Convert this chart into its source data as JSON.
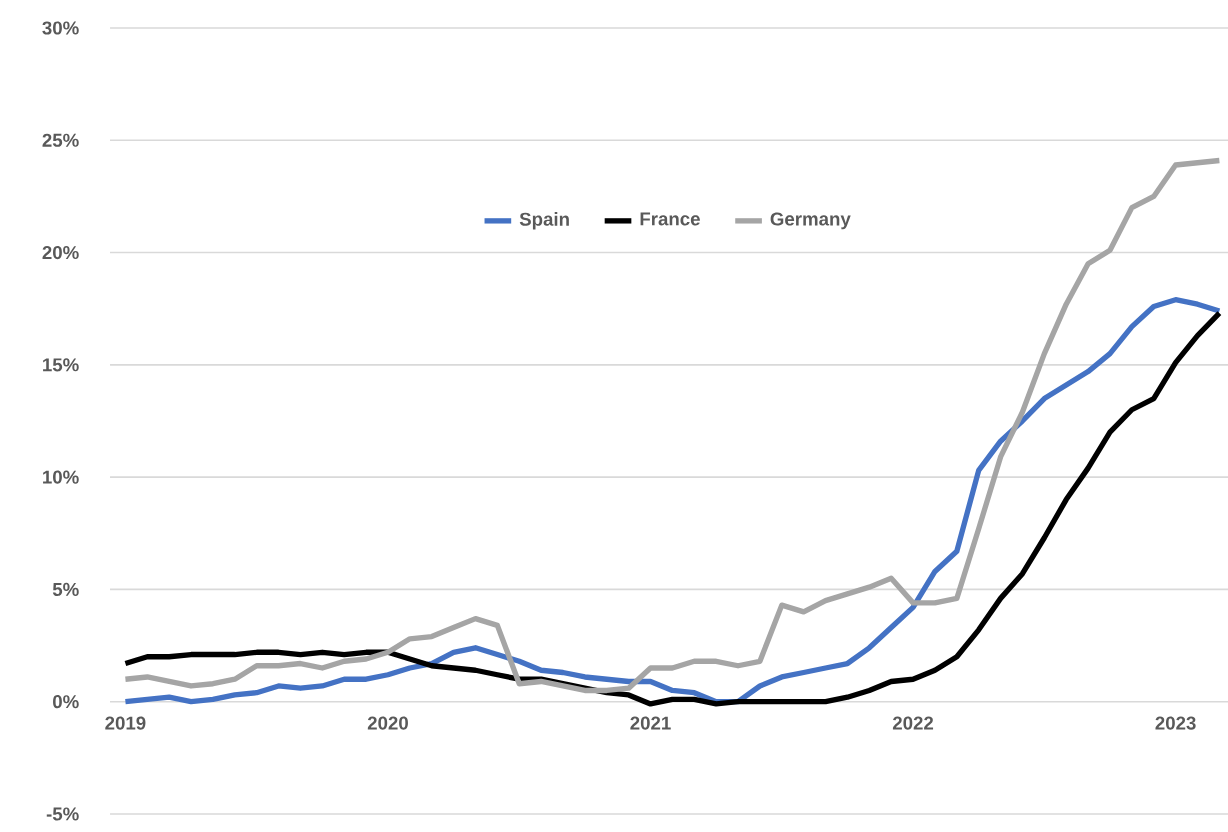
{
  "chart_data": {
    "type": "line",
    "x": [
      "2019-01",
      "2019-02",
      "2019-03",
      "2019-04",
      "2019-05",
      "2019-06",
      "2019-07",
      "2019-08",
      "2019-09",
      "2019-10",
      "2019-11",
      "2019-12",
      "2020-01",
      "2020-02",
      "2020-03",
      "2020-04",
      "2020-05",
      "2020-06",
      "2020-07",
      "2020-08",
      "2020-09",
      "2020-10",
      "2020-11",
      "2020-12",
      "2021-01",
      "2021-02",
      "2021-03",
      "2021-04",
      "2021-05",
      "2021-06",
      "2021-07",
      "2021-08",
      "2021-09",
      "2021-10",
      "2021-11",
      "2021-12",
      "2022-01",
      "2022-02",
      "2022-03",
      "2022-04",
      "2022-05",
      "2022-06",
      "2022-07",
      "2022-08",
      "2022-09",
      "2022-10",
      "2022-11",
      "2022-12",
      "2023-01",
      "2023-02",
      "2023-03"
    ],
    "series": [
      {
        "name": "Spain",
        "color": "#4472c4",
        "values": [
          0.0,
          0.1,
          0.2,
          0.0,
          0.1,
          0.3,
          0.4,
          0.7,
          0.6,
          0.7,
          1.0,
          1.0,
          1.2,
          1.5,
          1.7,
          2.2,
          2.4,
          2.1,
          1.8,
          1.4,
          1.3,
          1.1,
          1.0,
          0.9,
          0.9,
          0.5,
          0.4,
          0.0,
          0.0,
          0.7,
          1.1,
          1.3,
          1.5,
          1.7,
          2.4,
          3.3,
          4.2,
          5.8,
          6.7,
          10.3,
          11.6,
          12.5,
          13.5,
          14.1,
          14.7,
          15.5,
          16.7,
          17.6,
          17.9,
          17.7,
          17.4
        ]
      },
      {
        "name": "France",
        "color": "#000000",
        "values": [
          1.7,
          2.0,
          2.0,
          2.1,
          2.1,
          2.1,
          2.2,
          2.2,
          2.1,
          2.2,
          2.1,
          2.2,
          2.2,
          1.9,
          1.6,
          1.5,
          1.4,
          1.2,
          1.0,
          1.0,
          0.8,
          0.6,
          0.4,
          0.3,
          -0.1,
          0.1,
          0.1,
          -0.1,
          0.0,
          0.0,
          0.0,
          0.0,
          0.0,
          0.2,
          0.5,
          0.9,
          1.0,
          1.4,
          2.0,
          3.2,
          4.6,
          5.7,
          7.3,
          9.0,
          10.4,
          12.0,
          13.0,
          13.5,
          15.1,
          16.3,
          17.3
        ]
      },
      {
        "name": "Germany",
        "color": "#a5a5a5",
        "values": [
          1.0,
          1.1,
          0.9,
          0.7,
          0.8,
          1.0,
          1.6,
          1.6,
          1.7,
          1.5,
          1.8,
          1.9,
          2.2,
          2.8,
          2.9,
          3.3,
          3.7,
          3.4,
          0.8,
          0.9,
          0.7,
          0.5,
          0.5,
          0.6,
          1.5,
          1.5,
          1.8,
          1.8,
          1.6,
          1.8,
          4.3,
          4.0,
          4.5,
          4.8,
          5.1,
          5.5,
          4.4,
          4.4,
          4.6,
          7.7,
          10.9,
          12.9,
          15.5,
          17.7,
          19.5,
          20.1,
          22.0,
          22.5,
          23.9,
          24.0,
          24.1
        ]
      }
    ],
    "xlim": [
      "2018-12-10",
      "2023-03-13"
    ],
    "xticks": [
      "2019",
      "2020",
      "2021",
      "2022",
      "2023"
    ],
    "ylim": [
      -5,
      30
    ],
    "yticks": [
      {
        "value": -5,
        "label": "-5%"
      },
      {
        "value": 0,
        "label": "0%"
      },
      {
        "value": 5,
        "label": "5%"
      },
      {
        "value": 10,
        "label": "10%"
      },
      {
        "value": 15,
        "label": "15%"
      },
      {
        "value": 20,
        "label": "20%"
      },
      {
        "value": 25,
        "label": "25%"
      },
      {
        "value": 30,
        "label": "30%"
      }
    ],
    "grid": "y",
    "legend": "top",
    "marker": "none",
    "line_style": "solid"
  }
}
